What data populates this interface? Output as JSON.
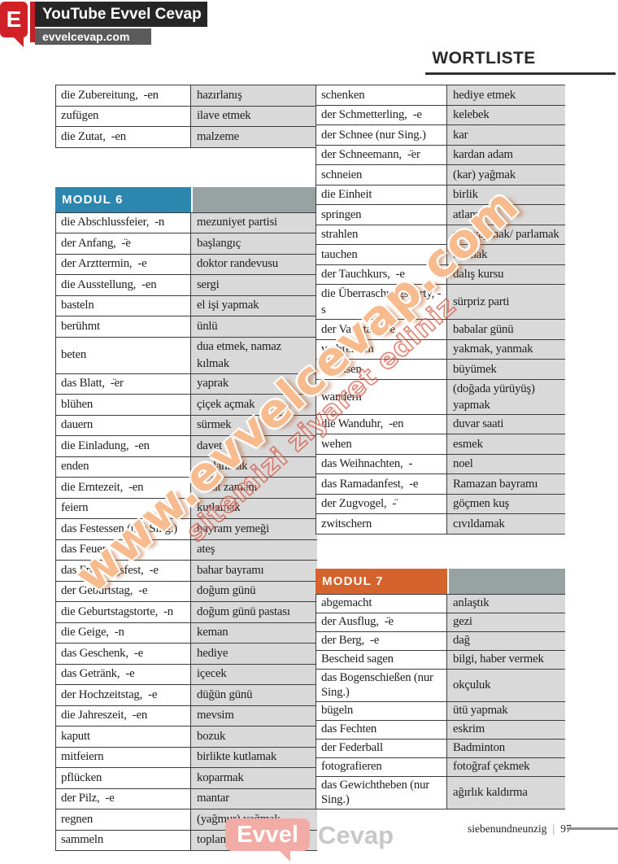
{
  "site_header": {
    "logo_letter": "E",
    "title": "YouTube Evvel Cevap",
    "url": "evvelcevap.com"
  },
  "page": {
    "title": "WORTLISTE"
  },
  "tables": {
    "left_top": {
      "rows": [
        {
          "de": "die Zubereitung,  -en",
          "tr": "hazırlanış"
        },
        {
          "de": "zufügen",
          "tr": "ilave etmek"
        },
        {
          "de": "die Zutat,  -en",
          "tr": "malzeme"
        }
      ]
    },
    "modul6": {
      "label": "MODUL 6",
      "rows": [
        {
          "de": "die Abschlussfeier,  -n",
          "tr": "mezuniyet partisi"
        },
        {
          "de": "der Anfang,  -̈e",
          "tr": "başlangıç"
        },
        {
          "de": "der Arzttermin,  -e",
          "tr": "doktor randevusu"
        },
        {
          "de": "die Ausstellung,  -en",
          "tr": "sergi"
        },
        {
          "de": "basteln",
          "tr": "el işi yapmak"
        },
        {
          "de": "berühmt",
          "tr": "ünlü"
        },
        {
          "de": "beten",
          "tr": "dua etmek, namaz kılmak"
        },
        {
          "de": "das Blatt,  -̈er",
          "tr": "yaprak"
        },
        {
          "de": "blühen",
          "tr": "çiçek açmak"
        },
        {
          "de": "dauern",
          "tr": "sürmek"
        },
        {
          "de": "die Einladung,  -en",
          "tr": "davet"
        },
        {
          "de": "enden",
          "tr": "sonlanmak"
        },
        {
          "de": "die Erntezeit,  -en",
          "tr": "hasat zamanı"
        },
        {
          "de": "feiern",
          "tr": "kutlamak"
        },
        {
          "de": "das Festessen (nur Sing.)",
          "tr": "bayram yemeği"
        },
        {
          "de": "das Feuer,  -",
          "tr": "ateş"
        },
        {
          "de": "das Frühlingsfest,  -e",
          "tr": "bahar bayramı"
        },
        {
          "de": "der Geburtstag,  -e",
          "tr": "doğum günü"
        },
        {
          "de": "die Geburtstagstorte,  -n",
          "tr": "doğum günü pastası"
        },
        {
          "de": "die Geige,  -n",
          "tr": "keman"
        },
        {
          "de": "das Geschenk,  -e",
          "tr": "hediye"
        },
        {
          "de": "das Getränk,  -e",
          "tr": "içecek"
        },
        {
          "de": "der Hochzeitstag,  -e",
          "tr": "düğün günü"
        },
        {
          "de": "die Jahreszeit,  -en",
          "tr": "mevsim"
        },
        {
          "de": "kaputt",
          "tr": "bozuk"
        },
        {
          "de": "mitfeiern",
          "tr": "birlikte kutlamak"
        },
        {
          "de": "pflücken",
          "tr": "koparmak"
        },
        {
          "de": "der Pilz,  -e",
          "tr": "mantar"
        },
        {
          "de": "regnen",
          "tr": "(yağmur) yağmak"
        },
        {
          "de": "sammeln",
          "tr": "toplamak"
        }
      ]
    },
    "right_top": {
      "rows": [
        {
          "de": "schenken",
          "tr": "hediye etmek"
        },
        {
          "de": "der Schmetterling,  -e",
          "tr": "kelebek"
        },
        {
          "de": "der Schnee (nur Sing.)",
          "tr": "kar"
        },
        {
          "de": "der Schneemann,  -̈er",
          "tr": "kardan adam"
        },
        {
          "de": "schneien",
          "tr": "(kar) yağmak"
        },
        {
          "de": "die Einheit",
          "tr": "birlik"
        },
        {
          "de": "springen",
          "tr": "atlamak"
        },
        {
          "de": "strahlen",
          "tr": "ışın yaymak/ parlamak"
        },
        {
          "de": "tauchen",
          "tr": "dalmak"
        },
        {
          "de": "der Tauchkurs,  -e",
          "tr": "dalış kursu"
        },
        {
          "de": "die Überraschungsparty, -s",
          "tr": "sürpriz parti"
        },
        {
          "de": "der Vatertag,  -e",
          "tr": "babalar günü"
        },
        {
          "de": "verbrennen",
          "tr": "yakmak, yanmak"
        },
        {
          "de": "wachsen",
          "tr": "büyümek"
        },
        {
          "de": "wandern",
          "tr": "(doğada yürüyüş) yapmak"
        },
        {
          "de": "die Wanduhr,  -en",
          "tr": "duvar saati"
        },
        {
          "de": "wehen",
          "tr": "esmek"
        },
        {
          "de": "das Weihnachten,  -",
          "tr": "noel"
        },
        {
          "de": "das Ramadanfest,  -e",
          "tr": "Ramazan bayramı"
        },
        {
          "de": "der Zugvogel,  -̈",
          "tr": "göçmen kuş"
        },
        {
          "de": "zwitschern",
          "tr": "cıvıldamak"
        }
      ]
    },
    "modul7": {
      "label": "MODUL 7",
      "rows": [
        {
          "de": "abgemacht",
          "tr": "anlaştık"
        },
        {
          "de": "der Ausflug,  -̈e",
          "tr": "gezi"
        },
        {
          "de": "der Berg,  -e",
          "tr": "dağ"
        },
        {
          "de": "Bescheid sagen",
          "tr": "bilgi, haber vermek"
        },
        {
          "de": "das Bogenschießen (nur Sing.)",
          "tr": "okçuluk"
        },
        {
          "de": "bügeln",
          "tr": "ütü yapmak"
        },
        {
          "de": "das Fechten",
          "tr": "eskrim"
        },
        {
          "de": "der Federball",
          "tr": "Badminton"
        },
        {
          "de": "fotografieren",
          "tr": "fotoğraf çekmek"
        },
        {
          "de": "das Gewichtheben (nur Sing.)",
          "tr": "ağırlık kaldırma"
        }
      ]
    }
  },
  "watermark": {
    "line1": "www.evvelcevap.com",
    "line2": "sitemizi ziyaret ediniz"
  },
  "footer": {
    "logo_primary": "Evvel",
    "logo_secondary": "Cevap",
    "page_word": "siebenundneunzig",
    "page_separator": "|",
    "page_number": "97"
  },
  "colors": {
    "logo_red": "#cf2127",
    "modul6_blue": "#2d86ae",
    "modul7_orange": "#d4632e",
    "module_header_gray": "#97a3a2",
    "cell_gray": "#d9d9d9",
    "border_dark": "#3c3c3c",
    "watermark_orange": "#f5ac74",
    "watermark_red": "#c63e2a",
    "footer_pink": "#f2aba5"
  }
}
